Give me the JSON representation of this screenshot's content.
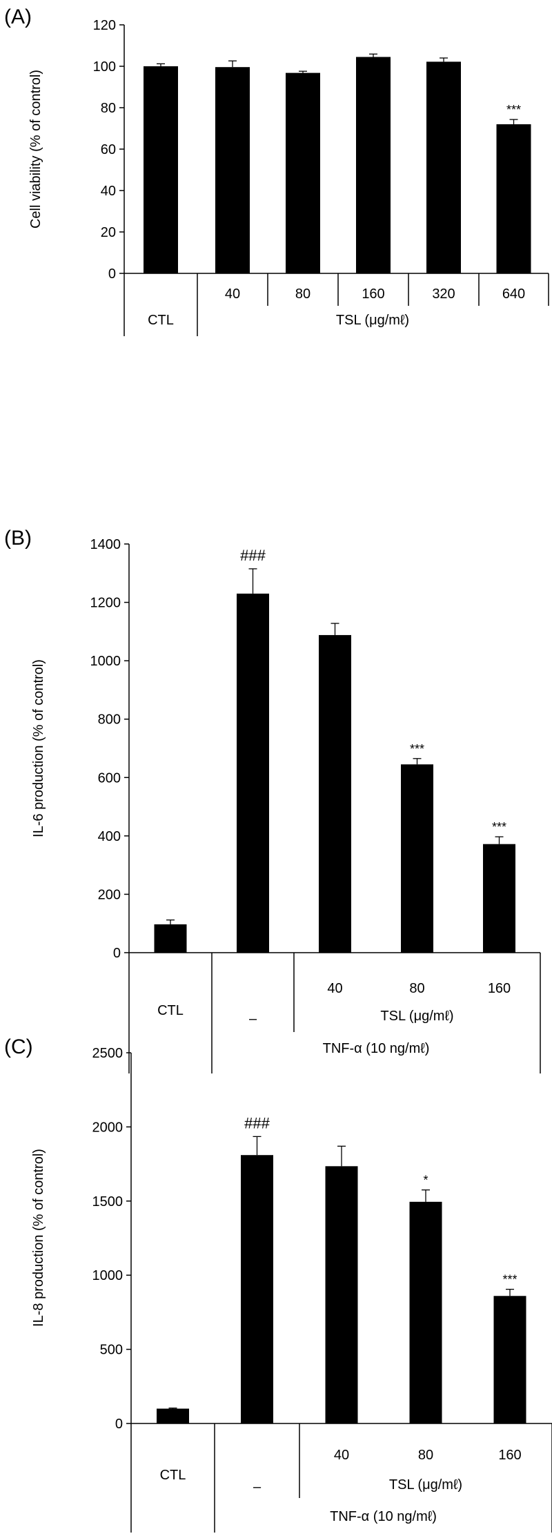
{
  "chart_data": [
    {
      "type": "bar",
      "panel_label": "(A)",
      "ylabel": "Cell viability (% of control)",
      "ylim": [
        0,
        120
      ],
      "yticks": [
        0,
        20,
        40,
        60,
        80,
        100,
        120
      ],
      "categories": [
        "CTL",
        "40",
        "80",
        "160",
        "320",
        "640"
      ],
      "values": [
        100,
        99.6,
        96.8,
        104.5,
        102.2,
        72
      ],
      "errors": [
        1.2,
        3.0,
        0.8,
        1.4,
        1.8,
        2.3
      ],
      "annotations": [
        "",
        "",
        "",
        "",
        "",
        "***"
      ],
      "group_labels": {
        "ctl": "CTL",
        "tsl": "TSL (μg/mℓ)"
      },
      "bar_color": "#000000",
      "grid": false
    },
    {
      "type": "bar",
      "panel_label": "(B)",
      "ylabel": "IL-6 production (% of control)",
      "ylim": [
        0,
        1400
      ],
      "yticks": [
        0,
        200,
        400,
        600,
        800,
        1000,
        1200,
        1400
      ],
      "categories": [
        "CTL",
        "–",
        "40",
        "80",
        "160"
      ],
      "values": [
        97,
        1230,
        1088,
        645,
        372
      ],
      "errors": [
        15,
        85,
        40,
        20,
        25
      ],
      "annotations": [
        "",
        "###",
        "",
        "***",
        "***"
      ],
      "group_labels": {
        "ctl": "CTL",
        "tsl": "TSL (μg/mℓ)",
        "tnf": "TNF-α (10 ng/mℓ)"
      },
      "bar_color": "#000000",
      "grid": false
    },
    {
      "type": "bar",
      "panel_label": "(C)",
      "ylabel": "IL-8 production (% of control)",
      "ylim": [
        0,
        2500
      ],
      "yticks": [
        0,
        500,
        1000,
        1500,
        2000,
        2500
      ],
      "categories": [
        "CTL",
        "–",
        "40",
        "80",
        "160"
      ],
      "values": [
        100,
        1810,
        1735,
        1495,
        860
      ],
      "errors": [
        4,
        125,
        135,
        80,
        45
      ],
      "annotations": [
        "",
        "###",
        "",
        "*",
        "***"
      ],
      "group_labels": {
        "ctl": "CTL",
        "tsl": "TSL (μg/mℓ)",
        "tnf": "TNF-α (10 ng/mℓ)"
      },
      "bar_color": "#000000",
      "grid": false
    }
  ]
}
